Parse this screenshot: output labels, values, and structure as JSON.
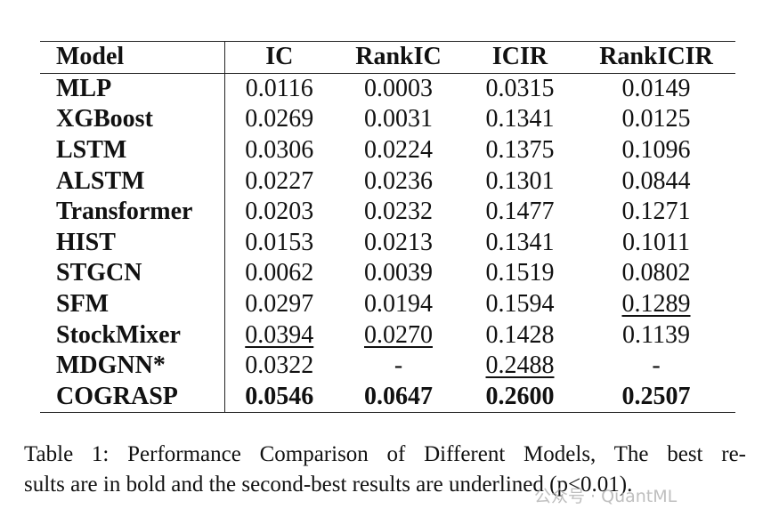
{
  "table": {
    "header": [
      "Model",
      "IC",
      "RankIC",
      "ICIR",
      "RankICIR"
    ],
    "rows": [
      [
        "MLP",
        "0.0116",
        "0.0003",
        "0.0315",
        "0.0149"
      ],
      [
        "XGBoost",
        "0.0269",
        "0.0031",
        "0.1341",
        "0.0125"
      ],
      [
        "LSTM",
        "0.0306",
        "0.0224",
        "0.1375",
        "0.1096"
      ],
      [
        "ALSTM",
        "0.0227",
        "0.0236",
        "0.1301",
        "0.0844"
      ],
      [
        "Transformer",
        "0.0203",
        "0.0232",
        "0.1477",
        "0.1271"
      ],
      [
        "HIST",
        "0.0153",
        "0.0213",
        "0.1341",
        "0.1011"
      ],
      [
        "STGCN",
        "0.0062",
        "0.0039",
        "0.1519",
        "0.0802"
      ],
      [
        "SFM",
        "0.0297",
        "0.0194",
        "0.1594",
        "0.1289"
      ],
      [
        "StockMixer",
        "0.0394",
        "0.0270",
        "0.1428",
        "0.1139"
      ],
      [
        "MDGNN*",
        "0.0322",
        "-",
        "0.2488",
        "-"
      ],
      [
        "COGRASP",
        "0.0546",
        "0.0647",
        "0.2600",
        "0.2507"
      ]
    ]
  },
  "caption": [
    "Table 1: Performance Comparison of Different Models, The best re-",
    "sults are in bold and the second-best results are underlined (p<0.01)."
  ],
  "watermark": "公众号 · QuantML"
}
